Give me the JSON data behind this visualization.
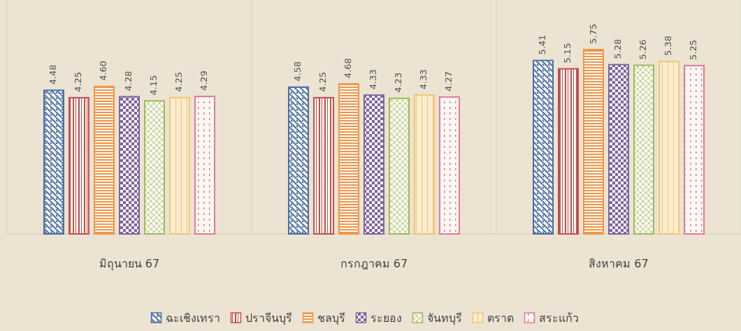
{
  "chart_data": {
    "type": "bar",
    "data_labels": true,
    "legend": "bottom",
    "grid": "x",
    "categories": [
      "มิถุนายน  67",
      "กรกฎาคม  67",
      "สิงหาคม  67"
    ],
    "series": [
      {
        "name": "ฉะเชิงเทรา",
        "color": "#4a6fa5",
        "values": [
          4.48,
          4.58,
          5.41
        ],
        "value_labels": [
          "4.48",
          "4.58",
          "5.41"
        ]
      },
      {
        "name": "ปราจีนบุรี",
        "color": "#c0504d",
        "values": [
          4.25,
          4.25,
          5.15
        ],
        "value_labels": [
          "4.25",
          "4.25",
          "5.15"
        ]
      },
      {
        "name": "ชลบุรี",
        "color": "#f0964a",
        "values": [
          4.6,
          4.68,
          5.75
        ],
        "value_labels": [
          "4.60",
          "4.68",
          "5.75"
        ]
      },
      {
        "name": "ระยอง",
        "color": "#8064a2",
        "values": [
          4.28,
          4.33,
          5.28
        ],
        "value_labels": [
          "4.28",
          "4.33",
          "5.28"
        ]
      },
      {
        "name": "จันทบุรี",
        "color": "#9bbb59",
        "values": [
          4.15,
          4.23,
          5.26
        ],
        "value_labels": [
          "4.15",
          "4.23",
          "5.26"
        ]
      },
      {
        "name": "ตราด",
        "color": "#f2c76e",
        "values": [
          4.25,
          4.33,
          5.38
        ],
        "value_labels": [
          "4.25",
          "4.33",
          "5.38"
        ]
      },
      {
        "name": "สระแก้ว",
        "color": "#e07a9a",
        "values": [
          4.29,
          4.27,
          5.25
        ],
        "value_labels": [
          "4.29",
          "4.27",
          "5.25"
        ]
      }
    ]
  }
}
